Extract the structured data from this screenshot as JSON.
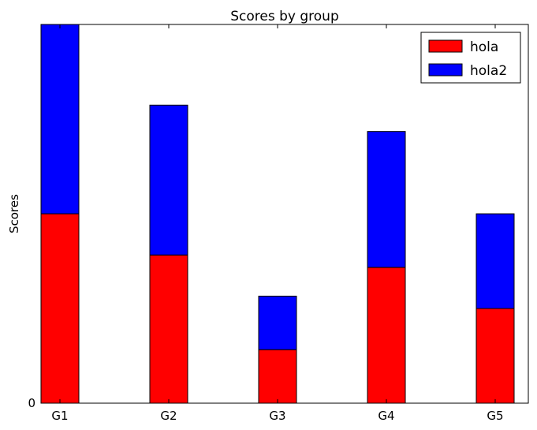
{
  "chart_data": {
    "type": "bar",
    "stacked": true,
    "title": "Scores by group",
    "xlabel": "",
    "ylabel": "Scores",
    "categories": [
      "G1",
      "G2",
      "G3",
      "G4",
      "G5"
    ],
    "y_ticks": [
      "0"
    ],
    "ylim": [
      0,
      4.6
    ],
    "grid": false,
    "legend_position": "top-right",
    "series": [
      {
        "name": "hola",
        "color": "#ff0000",
        "values": [
          2.3,
          1.8,
          0.65,
          1.65,
          1.15
        ]
      },
      {
        "name": "hola2",
        "color": "#0000ff",
        "values": [
          2.3,
          1.82,
          0.65,
          1.65,
          1.15
        ]
      }
    ]
  }
}
